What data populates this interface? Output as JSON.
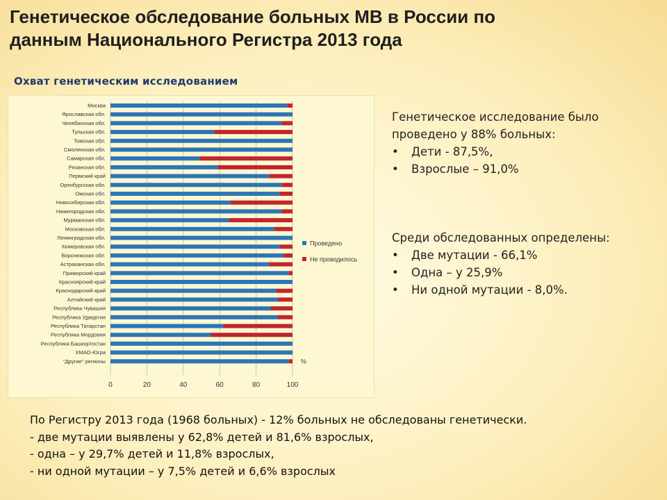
{
  "title": {
    "line1": "Генетическое обследование больных МВ в России по",
    "line2": "данным Национального Регистра 2013 года"
  },
  "chart_heading": "Охват генетическим исследованием",
  "chart_data": {
    "type": "bar",
    "orientation": "horizontal",
    "stacked": true,
    "categories": [
      "Москва",
      "Ярославская обл.",
      "Челябинская обл.",
      "Тульская обл.",
      "Томская обл.",
      "Смоленская обл.",
      "Самарская обл.",
      "Рязанская обл.",
      "Пермский край",
      "Оренбургская обл.",
      "Омская обл.",
      "Новосибирская обл.",
      "Нижегородская обл.",
      "Мурманская обл.",
      "Московская обл.",
      "Ленинградская обл.",
      "Кемеровская обл.",
      "Воронежская обл.",
      "Астраханская обл.",
      "Приморский край",
      "Красноярский край",
      "Краснодарский край",
      "Алтайский край",
      "Республика Чувашия",
      "Республика Удмуртия",
      "Республика Татарстан",
      "Республика Мордовия",
      "Республика Башкортостан",
      "ХМАО-Югра",
      "\"Другие\" регионы"
    ],
    "series": [
      {
        "name": "Проведено",
        "color": "#2e75b6",
        "values": [
          97,
          100,
          94,
          57,
          100,
          100,
          49,
          59,
          87,
          94,
          93,
          66,
          94,
          65,
          90,
          100,
          93,
          95,
          87,
          98,
          100,
          91,
          92,
          88,
          92,
          62,
          55,
          100,
          100,
          98
        ]
      },
      {
        "name": "Не проводилось",
        "color": "#c0262d",
        "values": [
          3,
          0,
          6,
          43,
          0,
          0,
          51,
          41,
          13,
          6,
          7,
          34,
          6,
          35,
          10,
          0,
          7,
          5,
          13,
          2,
          0,
          9,
          8,
          12,
          8,
          38,
          45,
          0,
          0,
          2
        ]
      }
    ],
    "xticks": [
      "0",
      "20",
      "40",
      "60",
      "80",
      "100"
    ],
    "xlim": [
      0,
      100
    ],
    "unit_label": "%",
    "legend_position": "right"
  },
  "right_text": {
    "block1": {
      "line1": "Генетическое исследование было",
      "line2": "проведено у 88% больных:",
      "bullets": [
        "Дети - 87,5%,",
        "Взрослые – 91,0%"
      ]
    },
    "block2": {
      "line1": "Среди обследованных определены:",
      "bullets": [
        "Две мутации - 66,1%",
        "Одна – у 25,9%",
        "Ни одной мутации - 8,0%."
      ]
    },
    "bullet_char": "•"
  },
  "bottom_text": {
    "line1": "По Регистру 2013 года (1968 больных) - 12% больных не обследованы генетически.",
    "line2": "- две мутации выявлены у 62,8% детей и 81,6% взрослых,",
    "line3": "- одна – у 29,7% детей и 11,8% взрослых,",
    "line4": "- ни одной мутации – у 7,5% детей и 6,6% взрослых"
  }
}
